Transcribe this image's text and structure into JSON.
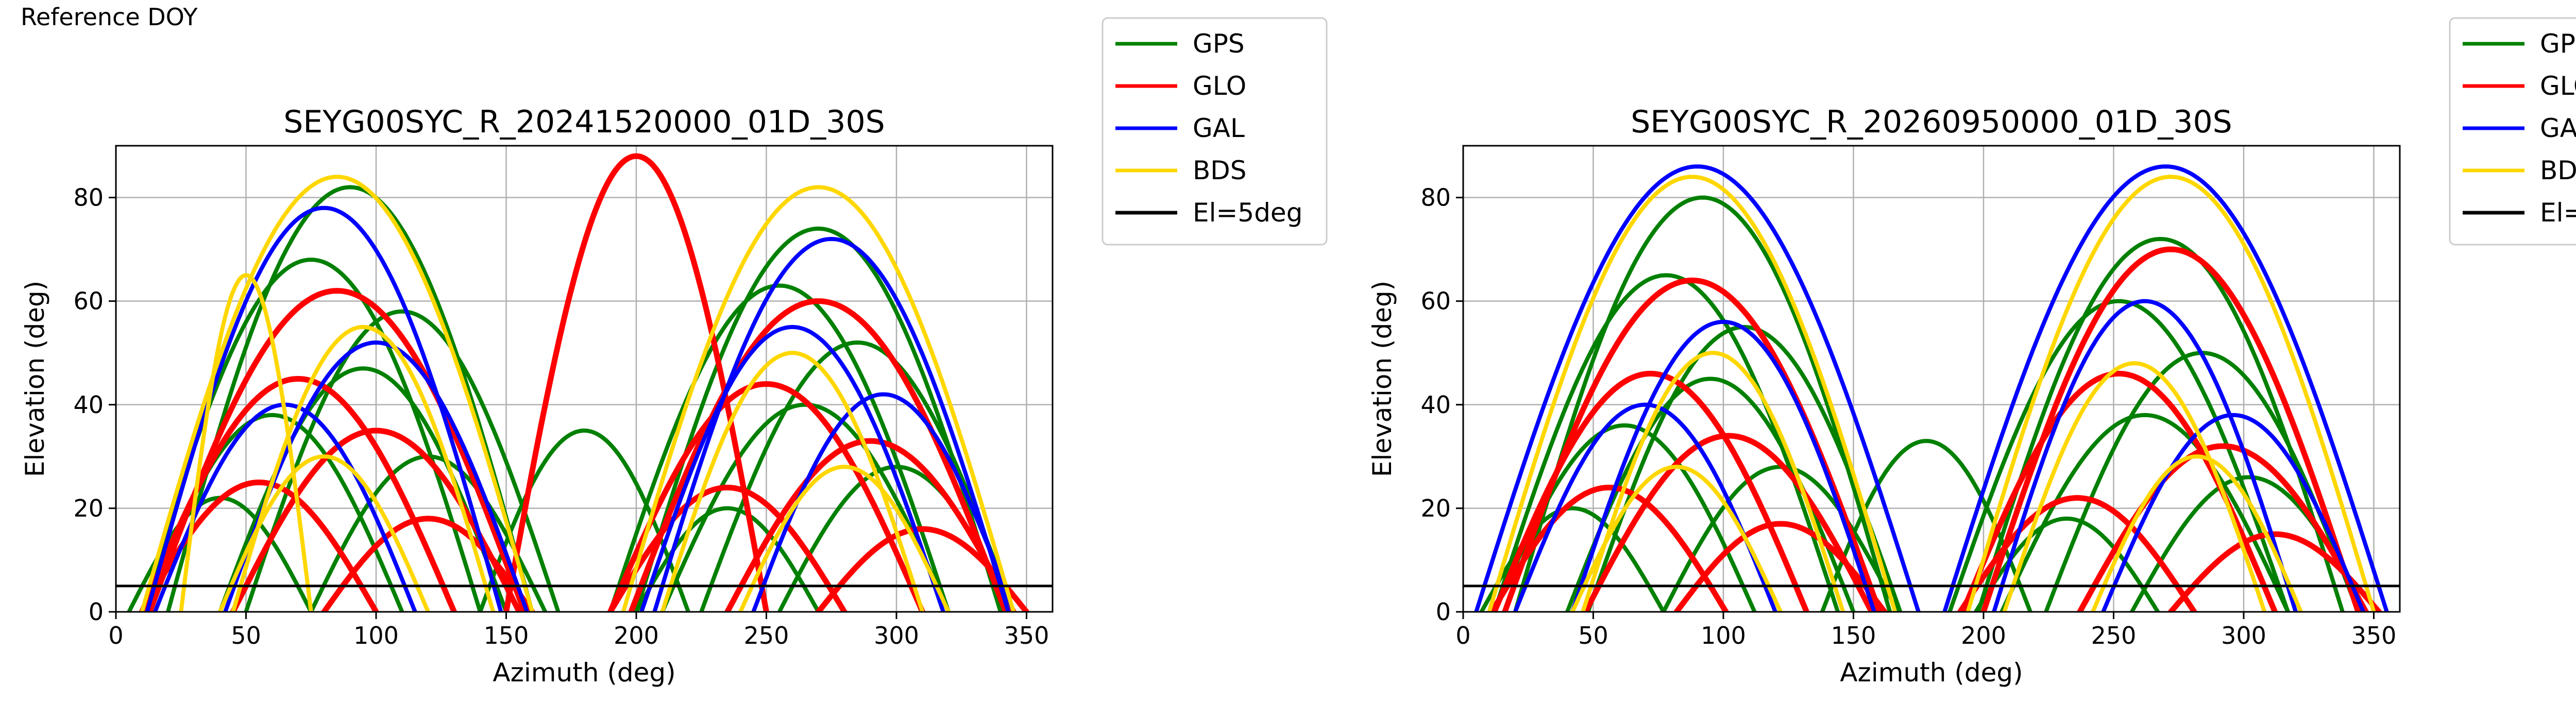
{
  "page_label": "Reference DOY",
  "legend": {
    "entries": [
      {
        "label": "GPS",
        "color": "#008000"
      },
      {
        "label": "GLO",
        "color": "#ff0000"
      },
      {
        "label": "GAL",
        "color": "#0000ff"
      },
      {
        "label": "BDS",
        "color": "#ffd700"
      },
      {
        "label": "El=5deg",
        "color": "#000000"
      }
    ]
  },
  "chart_data": [
    {
      "type": "scatter",
      "title": "SEYG00SYC_R_20241520000_01D_30S",
      "xlabel": "Azimuth (deg)",
      "ylabel": "Elevation (deg)",
      "xlim": [
        0,
        360
      ],
      "ylim": [
        0,
        90
      ],
      "xticks": [
        0,
        50,
        100,
        150,
        200,
        250,
        300,
        350
      ],
      "yticks": [
        0,
        20,
        40,
        60,
        80
      ],
      "grid": true,
      "legend_position": "outside-right",
      "reference_line": {
        "label": "El=5deg",
        "y": 5,
        "color": "#000000"
      },
      "series": [
        {
          "name": "GPS",
          "color": "#008000",
          "tracks": [
            {
              "center": 90,
              "halfwidth": 70,
              "peak": 82,
              "phase": 0.05,
              "thick": 1.6
            },
            {
              "center": 75,
              "halfwidth": 65,
              "peak": 68,
              "phase": 0.12,
              "thick": 1.6
            },
            {
              "center": 110,
              "halfwidth": 60,
              "peak": 58,
              "phase": 0.2,
              "thick": 1.6
            },
            {
              "center": 95,
              "halfwidth": 55,
              "peak": 47,
              "phase": 0.25,
              "thick": 1.6
            },
            {
              "center": 60,
              "halfwidth": 50,
              "peak": 38,
              "phase": 0.3,
              "thick": 1.6
            },
            {
              "center": 120,
              "halfwidth": 45,
              "peak": 30,
              "phase": 0.35,
              "thick": 1.6
            },
            {
              "center": 40,
              "halfwidth": 35,
              "peak": 22,
              "phase": 0.4,
              "thick": 1.6
            },
            {
              "center": 270,
              "halfwidth": 70,
              "peak": 74,
              "phase": 0.05,
              "thick": 1.6
            },
            {
              "center": 255,
              "halfwidth": 65,
              "peak": 63,
              "phase": 0.15,
              "thick": 1.6
            },
            {
              "center": 285,
              "halfwidth": 60,
              "peak": 52,
              "phase": 0.22,
              "thick": 1.6
            },
            {
              "center": 265,
              "halfwidth": 55,
              "peak": 40,
              "phase": 0.3,
              "thick": 1.6
            },
            {
              "center": 300,
              "halfwidth": 45,
              "peak": 28,
              "phase": 0.38,
              "thick": 1.6
            },
            {
              "center": 235,
              "halfwidth": 35,
              "peak": 20,
              "phase": 0.42,
              "thick": 1.6
            },
            {
              "center": 180,
              "halfwidth": 40,
              "peak": 35,
              "phase": 0.5,
              "thick": 1.6
            }
          ]
        },
        {
          "name": "GLO",
          "color": "#ff0000",
          "tracks": [
            {
              "center": 85,
              "halfwidth": 72,
              "peak": 62,
              "phase": 0.1,
              "thick": 2.2
            },
            {
              "center": 70,
              "halfwidth": 60,
              "peak": 45,
              "phase": 0.2,
              "thick": 2.2
            },
            {
              "center": 100,
              "halfwidth": 55,
              "peak": 35,
              "phase": 0.28,
              "thick": 2.2
            },
            {
              "center": 55,
              "halfwidth": 45,
              "peak": 25,
              "phase": 0.36,
              "thick": 2.2
            },
            {
              "center": 120,
              "halfwidth": 40,
              "peak": 18,
              "phase": 0.44,
              "thick": 2.2
            },
            {
              "center": 270,
              "halfwidth": 72,
              "peak": 60,
              "phase": 0.1,
              "thick": 2.2
            },
            {
              "center": 250,
              "halfwidth": 60,
              "peak": 44,
              "phase": 0.2,
              "thick": 2.2
            },
            {
              "center": 290,
              "halfwidth": 55,
              "peak": 33,
              "phase": 0.3,
              "thick": 2.2
            },
            {
              "center": 235,
              "halfwidth": 45,
              "peak": 24,
              "phase": 0.38,
              "thick": 2.2
            },
            {
              "center": 310,
              "halfwidth": 40,
              "peak": 16,
              "phase": 0.46,
              "thick": 2.2
            },
            {
              "center": 200,
              "halfwidth": 50,
              "peak": 88,
              "phase": 0.02,
              "thick": 2.2
            }
          ]
        },
        {
          "name": "GAL",
          "color": "#0000ff",
          "tracks": [
            {
              "center": 80,
              "halfwidth": 68,
              "peak": 78,
              "phase": 0.08,
              "thick": 1.6
            },
            {
              "center": 100,
              "halfwidth": 58,
              "peak": 52,
              "phase": 0.18,
              "thick": 1.6
            },
            {
              "center": 65,
              "halfwidth": 50,
              "peak": 40,
              "phase": 0.26,
              "thick": 1.6
            },
            {
              "center": 275,
              "halfwidth": 68,
              "peak": 72,
              "phase": 0.08,
              "thick": 1.6
            },
            {
              "center": 260,
              "halfwidth": 58,
              "peak": 55,
              "phase": 0.18,
              "thick": 1.6
            },
            {
              "center": 295,
              "halfwidth": 50,
              "peak": 42,
              "phase": 0.26,
              "thick": 1.6
            }
          ]
        },
        {
          "name": "BDS",
          "color": "#ffd700",
          "tracks": [
            {
              "center": 85,
              "halfwidth": 75,
              "peak": 84,
              "phase": 0.0,
              "thick": 1.6
            },
            {
              "center": 95,
              "halfwidth": 50,
              "peak": 55,
              "phase": 0.15,
              "thick": 1.6
            },
            {
              "center": 80,
              "halfwidth": 40,
              "peak": 30,
              "phase": 0.3,
              "thick": 1.6
            },
            {
              "center": 270,
              "halfwidth": 75,
              "peak": 82,
              "phase": 0.0,
              "thick": 1.6
            },
            {
              "center": 260,
              "halfwidth": 50,
              "peak": 50,
              "phase": 0.15,
              "thick": 1.6
            },
            {
              "center": 280,
              "halfwidth": 40,
              "peak": 28,
              "phase": 0.3,
              "thick": 1.6
            },
            {
              "center": 50,
              "halfwidth": 25,
              "peak": 65,
              "phase": 0.5,
              "thick": 1.6
            }
          ]
        }
      ]
    },
    {
      "type": "scatter",
      "title": "SEYG00SYC_R_20260950000_01D_30S",
      "xlabel": "Azimuth (deg)",
      "ylabel": "Elevation (deg)",
      "xlim": [
        0,
        360
      ],
      "ylim": [
        0,
        90
      ],
      "xticks": [
        0,
        50,
        100,
        150,
        200,
        250,
        300,
        350
      ],
      "yticks": [
        0,
        20,
        40,
        60,
        80
      ],
      "grid": true,
      "legend_position": "outside-right",
      "reference_line": {
        "label": "El=5deg",
        "y": 5,
        "color": "#000000"
      },
      "series": [
        {
          "name": "GPS",
          "color": "#008000",
          "tracks": [
            {
              "center": 92,
              "halfwidth": 72,
              "peak": 80,
              "phase": 0.05,
              "thick": 1.6
            },
            {
              "center": 78,
              "halfwidth": 66,
              "peak": 65,
              "phase": 0.12,
              "thick": 1.6
            },
            {
              "center": 108,
              "halfwidth": 60,
              "peak": 55,
              "phase": 0.2,
              "thick": 1.6
            },
            {
              "center": 95,
              "halfwidth": 55,
              "peak": 45,
              "phase": 0.25,
              "thick": 1.6
            },
            {
              "center": 62,
              "halfwidth": 50,
              "peak": 36,
              "phase": 0.3,
              "thick": 1.6
            },
            {
              "center": 122,
              "halfwidth": 45,
              "peak": 28,
              "phase": 0.35,
              "thick": 1.6
            },
            {
              "center": 42,
              "halfwidth": 35,
              "peak": 20,
              "phase": 0.4,
              "thick": 1.6
            },
            {
              "center": 268,
              "halfwidth": 70,
              "peak": 72,
              "phase": 0.05,
              "thick": 1.6
            },
            {
              "center": 252,
              "halfwidth": 65,
              "peak": 60,
              "phase": 0.15,
              "thick": 1.6
            },
            {
              "center": 284,
              "halfwidth": 60,
              "peak": 50,
              "phase": 0.22,
              "thick": 1.6
            },
            {
              "center": 262,
              "halfwidth": 55,
              "peak": 38,
              "phase": 0.3,
              "thick": 1.6
            },
            {
              "center": 302,
              "halfwidth": 45,
              "peak": 26,
              "phase": 0.38,
              "thick": 1.6
            },
            {
              "center": 232,
              "halfwidth": 35,
              "peak": 18,
              "phase": 0.42,
              "thick": 1.6
            },
            {
              "center": 178,
              "halfwidth": 40,
              "peak": 33,
              "phase": 0.5,
              "thick": 1.6
            }
          ]
        },
        {
          "name": "GLO",
          "color": "#ff0000",
          "tracks": [
            {
              "center": 88,
              "halfwidth": 72,
              "peak": 64,
              "phase": 0.1,
              "thick": 2.2
            },
            {
              "center": 72,
              "halfwidth": 60,
              "peak": 46,
              "phase": 0.2,
              "thick": 2.2
            },
            {
              "center": 102,
              "halfwidth": 55,
              "peak": 34,
              "phase": 0.28,
              "thick": 2.2
            },
            {
              "center": 56,
              "halfwidth": 45,
              "peak": 24,
              "phase": 0.36,
              "thick": 2.2
            },
            {
              "center": 122,
              "halfwidth": 40,
              "peak": 17,
              "phase": 0.44,
              "thick": 2.2
            },
            {
              "center": 272,
              "halfwidth": 72,
              "peak": 70,
              "phase": 0.1,
              "thick": 2.2
            },
            {
              "center": 252,
              "halfwidth": 60,
              "peak": 46,
              "phase": 0.2,
              "thick": 2.2
            },
            {
              "center": 292,
              "halfwidth": 55,
              "peak": 32,
              "phase": 0.3,
              "thick": 2.2
            },
            {
              "center": 236,
              "halfwidth": 45,
              "peak": 22,
              "phase": 0.38,
              "thick": 2.2
            },
            {
              "center": 312,
              "halfwidth": 40,
              "peak": 15,
              "phase": 0.46,
              "thick": 2.2
            }
          ]
        },
        {
          "name": "GAL",
          "color": "#0000ff",
          "tracks": [
            {
              "center": 90,
              "halfwidth": 85,
              "peak": 86,
              "phase": 0.02,
              "thick": 1.6
            },
            {
              "center": 100,
              "halfwidth": 58,
              "peak": 56,
              "phase": 0.18,
              "thick": 1.6
            },
            {
              "center": 70,
              "halfwidth": 50,
              "peak": 40,
              "phase": 0.26,
              "thick": 1.6
            },
            {
              "center": 270,
              "halfwidth": 85,
              "peak": 86,
              "phase": 0.02,
              "thick": 1.6
            },
            {
              "center": 262,
              "halfwidth": 58,
              "peak": 60,
              "phase": 0.18,
              "thick": 1.6
            },
            {
              "center": 296,
              "halfwidth": 50,
              "peak": 38,
              "phase": 0.26,
              "thick": 1.6
            }
          ]
        },
        {
          "name": "BDS",
          "color": "#ffd700",
          "tracks": [
            {
              "center": 88,
              "halfwidth": 78,
              "peak": 84,
              "phase": 0.0,
              "thick": 1.6
            },
            {
              "center": 96,
              "halfwidth": 50,
              "peak": 50,
              "phase": 0.15,
              "thick": 1.6
            },
            {
              "center": 82,
              "halfwidth": 40,
              "peak": 28,
              "phase": 0.3,
              "thick": 1.6
            },
            {
              "center": 272,
              "halfwidth": 78,
              "peak": 84,
              "phase": 0.0,
              "thick": 1.6
            },
            {
              "center": 258,
              "halfwidth": 50,
              "peak": 48,
              "phase": 0.15,
              "thick": 1.6
            },
            {
              "center": 282,
              "halfwidth": 40,
              "peak": 30,
              "phase": 0.3,
              "thick": 1.6
            }
          ]
        }
      ]
    }
  ]
}
